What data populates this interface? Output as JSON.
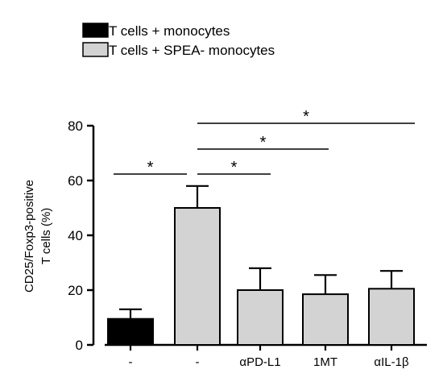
{
  "chart_data": {
    "type": "bar",
    "legend": {
      "placement": "top-left",
      "entries": [
        {
          "label": "T cells + monocytes",
          "color": "#000000"
        },
        {
          "label": "T cells + SPEA- monocytes",
          "color": "#d3d3d3"
        }
      ]
    },
    "ylabel_lines": [
      "CD25/Foxp3-positive",
      "T cells (%)"
    ],
    "ylim": [
      0,
      80
    ],
    "yticks": [
      "0",
      "20",
      "40",
      "60",
      "80"
    ],
    "categories": [
      "-",
      "-",
      "αPD-L1",
      "1MT",
      "αIL-1β"
    ],
    "values": [
      9.5,
      50,
      20,
      18.5,
      20.5
    ],
    "errors": [
      3.5,
      8,
      8,
      7,
      6.5
    ],
    "series_index": [
      0,
      1,
      1,
      1,
      1
    ],
    "significance": [
      {
        "from": 0,
        "to": 1,
        "label": "*"
      },
      {
        "from": 1,
        "to": 2,
        "label": "*"
      },
      {
        "from": 1,
        "to": 3,
        "label": "*"
      },
      {
        "from": 1,
        "to": 4,
        "label": "*"
      }
    ]
  }
}
